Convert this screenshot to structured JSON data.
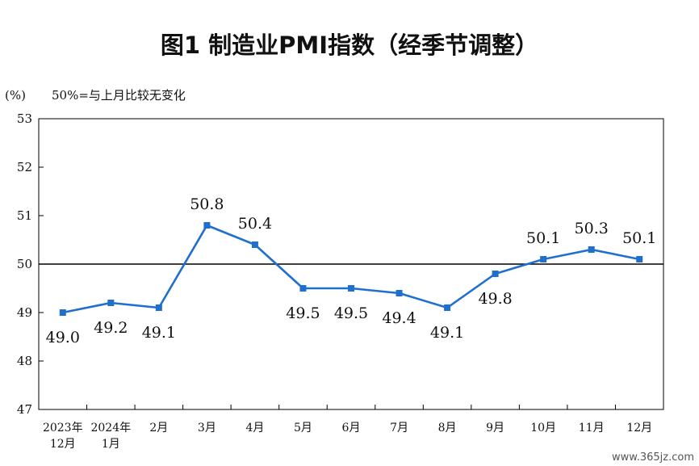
{
  "chart_data": {
    "type": "line",
    "title": "图1  制造业PMI指数（经季节调整）",
    "unit_label": "(%)",
    "note": "50%=与上月比较无变化",
    "categories": [
      [
        "2023年",
        "12月"
      ],
      [
        "2024年",
        "1月"
      ],
      [
        "2月"
      ],
      [
        "3月"
      ],
      [
        "4月"
      ],
      [
        "5月"
      ],
      [
        "6月"
      ],
      [
        "7月"
      ],
      [
        "8月"
      ],
      [
        "9月"
      ],
      [
        "10月"
      ],
      [
        "11月"
      ],
      [
        "12月"
      ]
    ],
    "values": [
      49.0,
      49.2,
      49.1,
      50.8,
      50.4,
      49.5,
      49.5,
      49.4,
      49.1,
      49.8,
      50.1,
      50.3,
      50.1
    ],
    "value_labels": [
      "49.0",
      "49.2",
      "49.1",
      "50.8",
      "50.4",
      "49.5",
      "49.5",
      "49.4",
      "49.1",
      "49.8",
      "50.1",
      "50.3",
      "50.1"
    ],
    "label_positions": [
      "below",
      "below",
      "below",
      "above",
      "above",
      "below",
      "below",
      "below",
      "below",
      "below",
      "above",
      "above",
      "above"
    ],
    "y_ticks": [
      "47",
      "48",
      "49",
      "50",
      "51",
      "52",
      "53"
    ],
    "ylim": [
      47,
      53
    ],
    "reference_line": 50,
    "grid": false,
    "colors": {
      "series": "#1f6fce",
      "axis": "#000000"
    }
  },
  "watermark": "www.365jz.com"
}
